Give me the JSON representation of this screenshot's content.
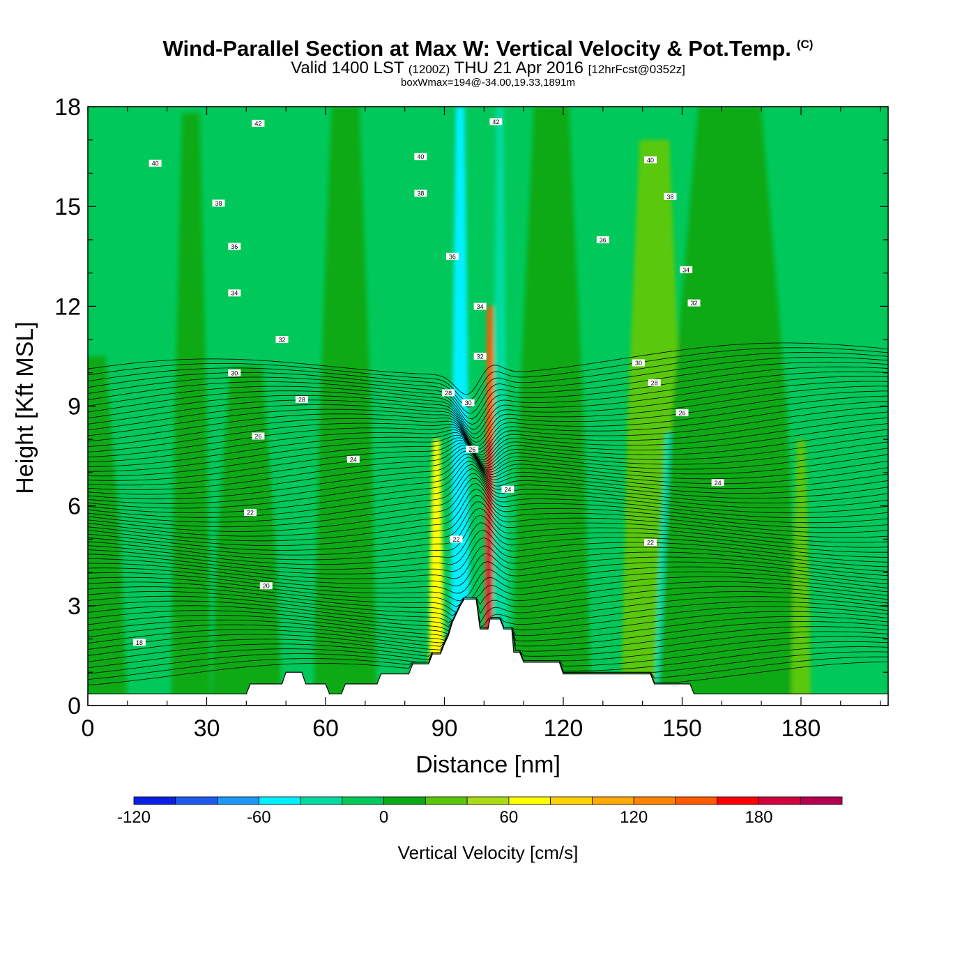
{
  "header": {
    "title": "Wind-Parallel Section at Max W: Vertical Velocity & Pot.Temp.",
    "copyright_mark": "(C)",
    "valid_main": "Valid 1400 LST",
    "valid_utc": "(1200Z)",
    "valid_date": "THU 21 Apr 2016",
    "forecast": "[12hrFcst@0352z]",
    "box_max": "boxWmax=194@-34.00,19.33,1891m"
  },
  "chart_data": {
    "type": "heatmap",
    "xlabel": "Distance [nm]",
    "ylabel": "Height [Kft MSL]",
    "xlim": [
      0,
      202
    ],
    "ylim": [
      0,
      18
    ],
    "x_ticks": [
      0,
      30,
      60,
      90,
      120,
      150,
      180
    ],
    "y_ticks": [
      0,
      3,
      6,
      9,
      12,
      15,
      18
    ],
    "x_minor_step": 10,
    "y_minor_step": 1,
    "colorbar": {
      "label": "Vertical Velocity [cm/s]",
      "levels": [
        -120,
        -100,
        -80,
        -60,
        -40,
        -20,
        0,
        20,
        40,
        60,
        80,
        100,
        120,
        140,
        160,
        180,
        200,
        220
      ],
      "tick_labels": [
        -120,
        -60,
        0,
        60,
        120,
        180
      ],
      "colors": [
        "#0a1ee6",
        "#1e5af0",
        "#1e96f5",
        "#00f0ff",
        "#00dca0",
        "#00c85a",
        "#0aaa14",
        "#5ac80a",
        "#aadc14",
        "#ffff00",
        "#ffd200",
        "#ffaa00",
        "#ff8200",
        "#ff5a00",
        "#ff0000",
        "#d2003c",
        "#b40050"
      ]
    },
    "background_color": "#00c85a",
    "vertical_velocity_bands": [
      {
        "x": 0,
        "x_width": 20,
        "y_top": 10.5,
        "value": 10
      },
      {
        "x": 26,
        "x_width": 10,
        "y_top": 17.8,
        "value": 10
      },
      {
        "x": 40,
        "x_width": 18,
        "y_top": 10.2,
        "value": 10
      },
      {
        "x": 65,
        "x_width": 16,
        "y_top": 18,
        "value": 10
      },
      {
        "x": 88,
        "x_width": 4,
        "y_top": 8.0,
        "value": 70
      },
      {
        "x": 93,
        "x_width": 3,
        "y_top": 12.0,
        "value": -90
      },
      {
        "x": 94,
        "x_width": 5,
        "y_top": 18,
        "value": -60
      },
      {
        "x": 101.5,
        "x_width": 3,
        "y_top": 12.0,
        "value": 140
      },
      {
        "x": 101.5,
        "x_width": 2,
        "y_top": 8.0,
        "value": 180
      },
      {
        "x": 104,
        "x_width": 4,
        "y_top": 18,
        "value": -40
      },
      {
        "x": 117,
        "x_width": 20,
        "y_top": 18,
        "value": 10
      },
      {
        "x": 143,
        "x_width": 17,
        "y_top": 17.0,
        "value": 30
      },
      {
        "x": 148,
        "x_width": 10,
        "y_top": 8.2,
        "value": -30
      },
      {
        "x": 162,
        "x_width": 36,
        "y_top": 18,
        "value": 10
      },
      {
        "x": 180,
        "x_width": 5,
        "y_top": 8.0,
        "value": 30
      }
    ],
    "terrain": [
      [
        0,
        0.35
      ],
      [
        40,
        0.35
      ],
      [
        41,
        0.65
      ],
      [
        49,
        0.65
      ],
      [
        50,
        1.0
      ],
      [
        54,
        1.0
      ],
      [
        55,
        0.65
      ],
      [
        60,
        0.65
      ],
      [
        61,
        0.35
      ],
      [
        64,
        0.35
      ],
      [
        65,
        0.65
      ],
      [
        73,
        0.65
      ],
      [
        74,
        0.95
      ],
      [
        81,
        0.95
      ],
      [
        82,
        1.25
      ],
      [
        86,
        1.25
      ],
      [
        87,
        1.55
      ],
      [
        89,
        1.55
      ],
      [
        90,
        1.85
      ],
      [
        91,
        2.1
      ],
      [
        92,
        2.5
      ],
      [
        93,
        2.75
      ],
      [
        94,
        3.0
      ],
      [
        95,
        3.2
      ],
      [
        98,
        3.2
      ],
      [
        99,
        2.3
      ],
      [
        101,
        2.3
      ],
      [
        101.5,
        2.6
      ],
      [
        104,
        2.6
      ],
      [
        105,
        2.3
      ],
      [
        107,
        2.3
      ],
      [
        107.5,
        1.6
      ],
      [
        109,
        1.6
      ],
      [
        110,
        1.3
      ],
      [
        119,
        1.3
      ],
      [
        120,
        0.95
      ],
      [
        142,
        0.95
      ],
      [
        143,
        0.65
      ],
      [
        152,
        0.65
      ],
      [
        153,
        0.35
      ],
      [
        202,
        0.35
      ]
    ],
    "contour_labels": [
      {
        "x": 43,
        "y": 17.5,
        "text": "42"
      },
      {
        "x": 103,
        "y": 17.55,
        "text": "42"
      },
      {
        "x": 17,
        "y": 16.3,
        "text": "40"
      },
      {
        "x": 84,
        "y": 16.5,
        "text": "40"
      },
      {
        "x": 142,
        "y": 16.4,
        "text": "40"
      },
      {
        "x": 33,
        "y": 15.1,
        "text": "38"
      },
      {
        "x": 84,
        "y": 15.4,
        "text": "38"
      },
      {
        "x": 147,
        "y": 15.3,
        "text": "38"
      },
      {
        "x": 37,
        "y": 13.8,
        "text": "36"
      },
      {
        "x": 92,
        "y": 13.5,
        "text": "36"
      },
      {
        "x": 130,
        "y": 14.0,
        "text": "36"
      },
      {
        "x": 37,
        "y": 12.4,
        "text": "34"
      },
      {
        "x": 99,
        "y": 12.0,
        "text": "34"
      },
      {
        "x": 151,
        "y": 13.1,
        "text": "34"
      },
      {
        "x": 49,
        "y": 11.0,
        "text": "32"
      },
      {
        "x": 99,
        "y": 10.5,
        "text": "32"
      },
      {
        "x": 153,
        "y": 12.1,
        "text": "32"
      },
      {
        "x": 37,
        "y": 10.0,
        "text": "30"
      },
      {
        "x": 96,
        "y": 9.1,
        "text": "30"
      },
      {
        "x": 139,
        "y": 10.3,
        "text": "30"
      },
      {
        "x": 54,
        "y": 9.2,
        "text": "28"
      },
      {
        "x": 91,
        "y": 9.4,
        "text": "28"
      },
      {
        "x": 143,
        "y": 9.7,
        "text": "28"
      },
      {
        "x": 43,
        "y": 8.1,
        "text": "26"
      },
      {
        "x": 97,
        "y": 7.7,
        "text": "26"
      },
      {
        "x": 150,
        "y": 8.8,
        "text": "26"
      },
      {
        "x": 67,
        "y": 7.4,
        "text": "24"
      },
      {
        "x": 106,
        "y": 6.5,
        "text": "24"
      },
      {
        "x": 159,
        "y": 6.7,
        "text": "24"
      },
      {
        "x": 41,
        "y": 5.8,
        "text": "22"
      },
      {
        "x": 93,
        "y": 5.0,
        "text": "22"
      },
      {
        "x": 142,
        "y": 4.9,
        "text": "22"
      },
      {
        "x": 45,
        "y": 3.6,
        "text": "20"
      },
      {
        "x": 13,
        "y": 1.9,
        "text": "18"
      }
    ],
    "isentrope_levels": [
      17.5,
      17.9,
      18.3,
      18.7,
      19.1,
      19.5,
      19.9,
      20.3,
      20.7,
      21.1,
      21.5,
      21.9,
      22.3,
      22.7,
      23.1,
      23.5,
      23.9,
      24.3,
      24.7,
      25.1,
      25.5,
      25.9,
      26.3,
      26.7,
      27.1,
      27.5,
      27.9,
      28.3,
      28.7,
      29.1,
      29.5,
      29.9,
      30.3,
      30.7,
      31.1,
      31.5,
      31.9,
      32.3,
      32.7,
      33.1,
      33.5,
      33.9,
      34.3,
      34.7,
      35.1,
      35.5,
      35.9,
      36.3,
      36.7,
      37.1,
      37.5,
      37.9,
      38.3,
      38.7,
      39.1,
      39.5,
      39.9,
      40.3,
      40.7,
      41.1,
      41.5,
      41.9,
      42.3,
      42.7
    ]
  }
}
